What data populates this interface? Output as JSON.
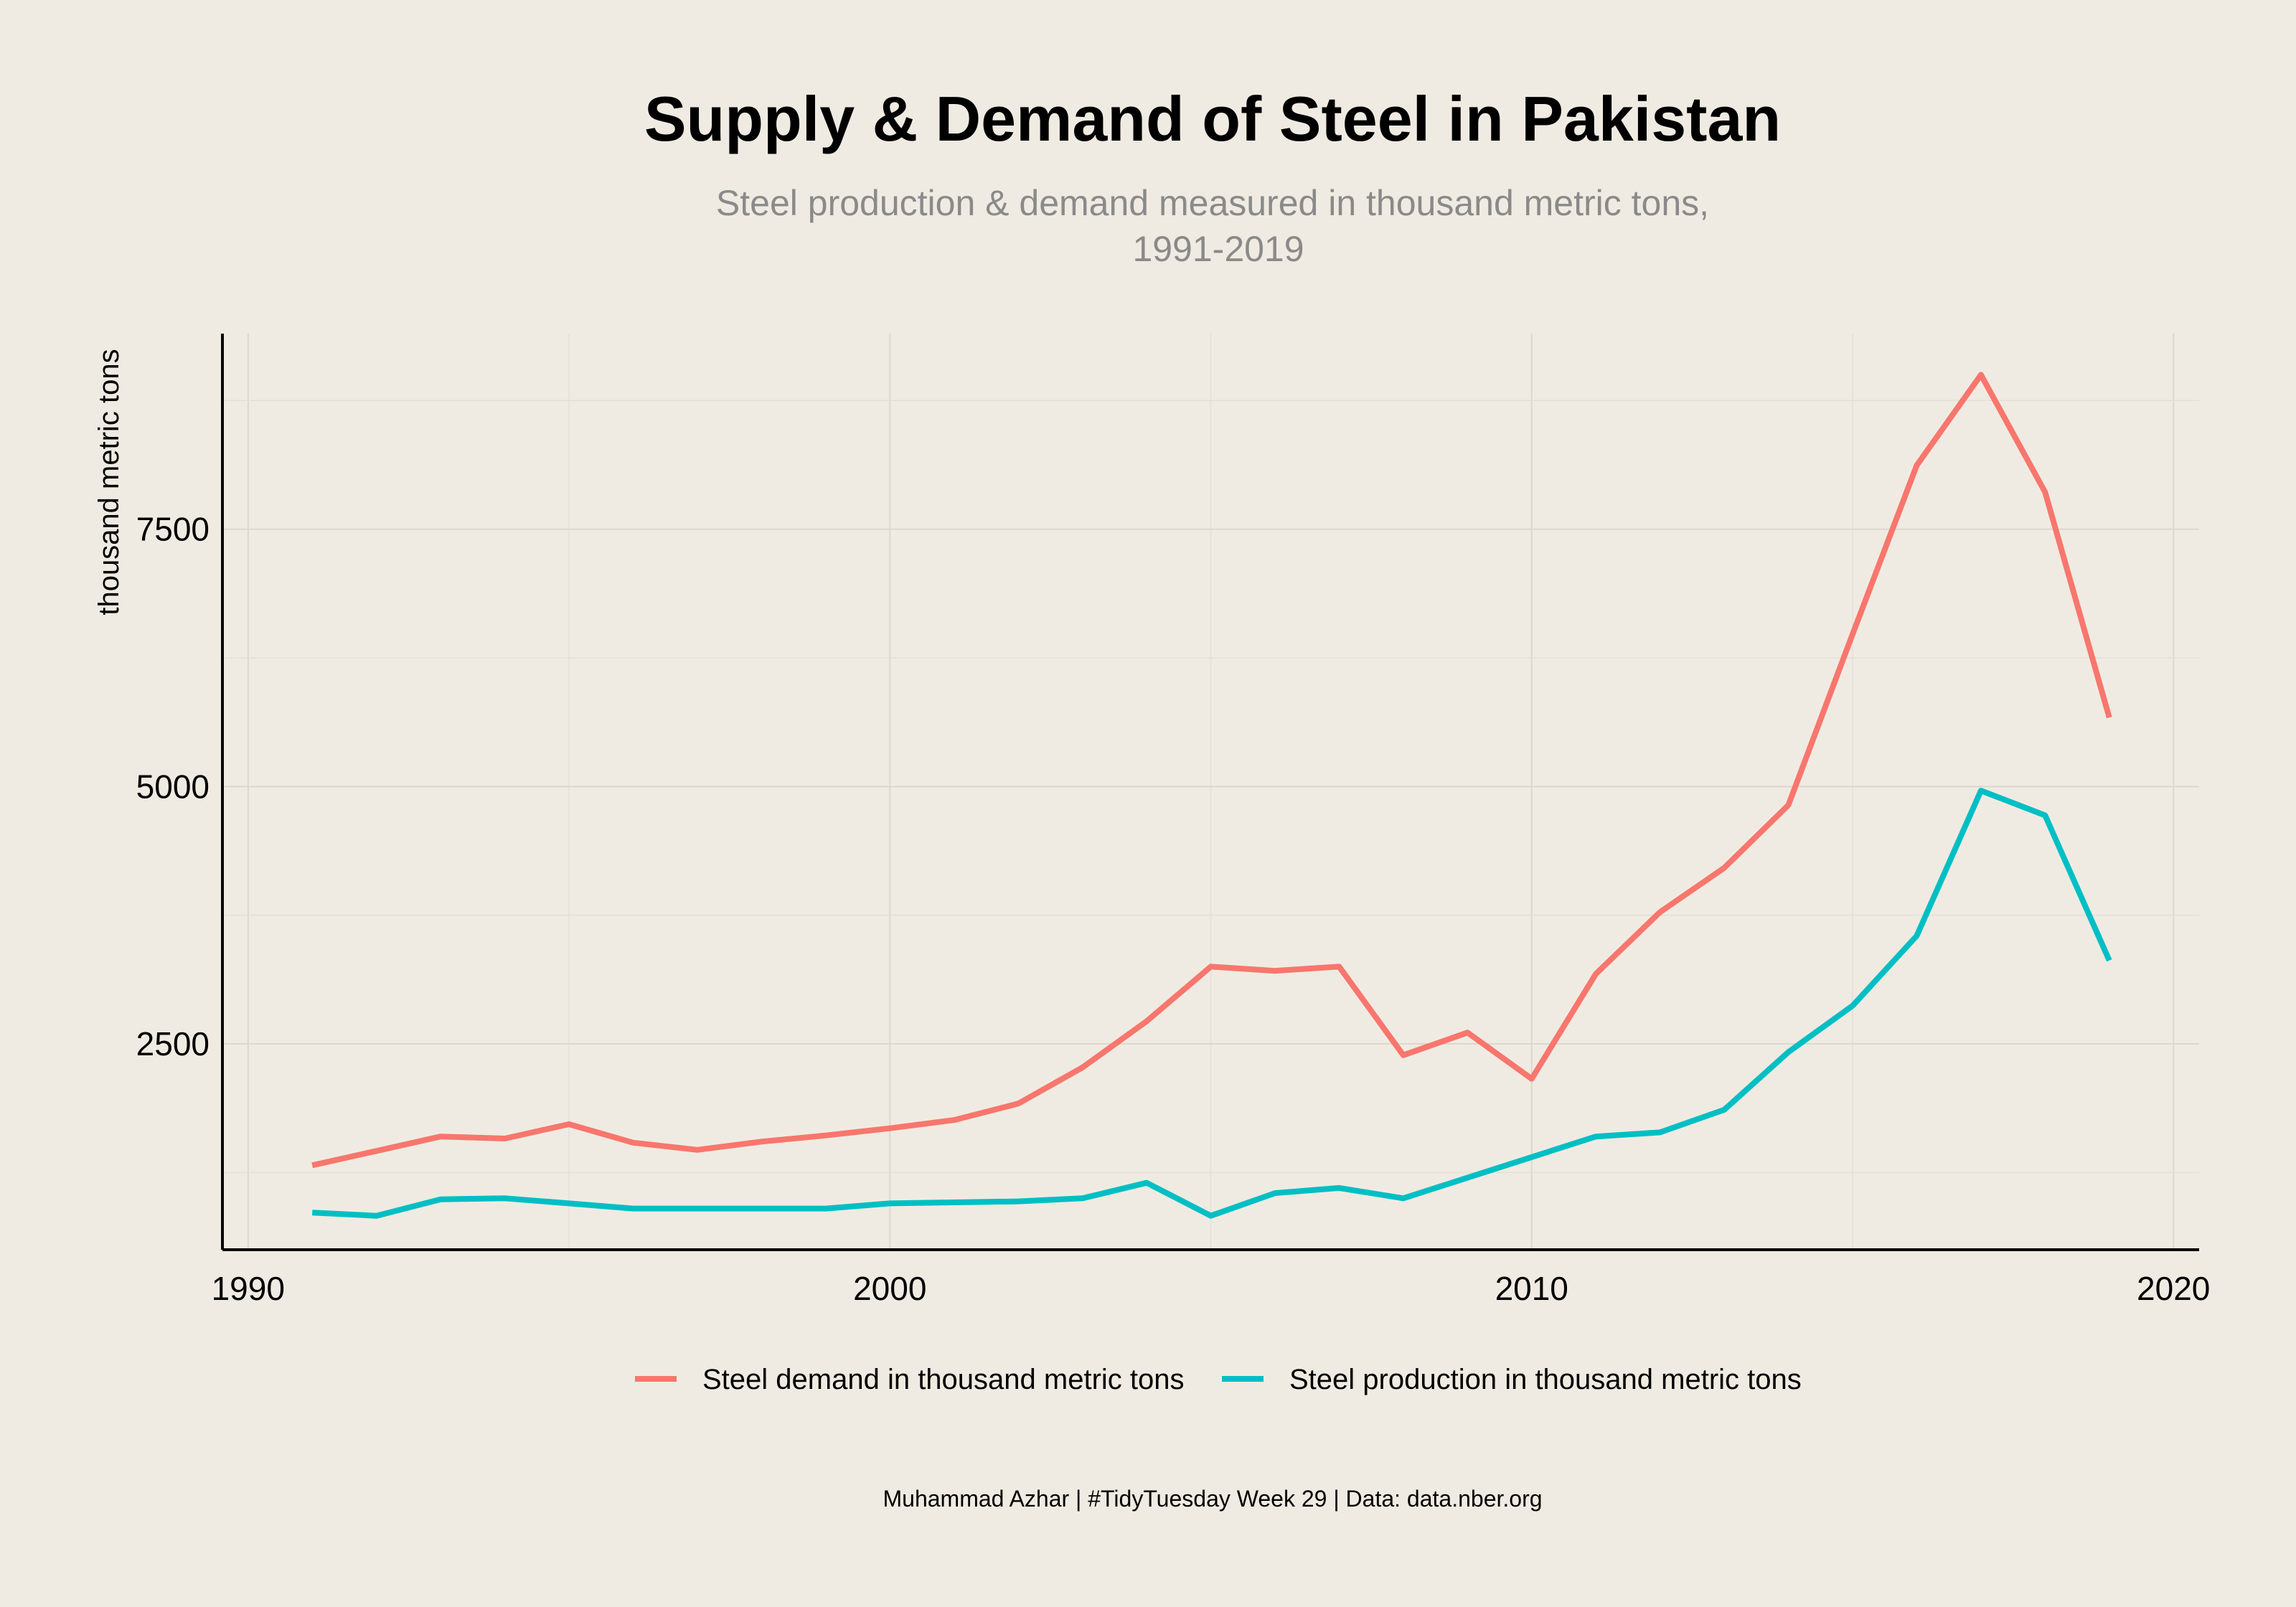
{
  "title": "Supply & Demand of Steel in Pakistan",
  "subtitle_line1": "Steel production & demand measured in thousand metric tons,",
  "subtitle_line2": "1991-2019",
  "caption": "Muhammad Azhar | #TidyTuesday Week 29 | Data: data.nber.org",
  "colors": {
    "demand": "#f8766d",
    "production": "#00bfc4",
    "background": "#f0ebe2"
  },
  "chart_data": {
    "type": "line",
    "title": "Supply & Demand of Steel in Pakistan",
    "subtitle": "Steel production & demand measured in thousand metric tons, 1991-2019",
    "xlabel": "",
    "ylabel": "thousand metric tons",
    "xlim": [
      1990,
      2020
    ],
    "ylim": [
      500,
      9400
    ],
    "x_ticks": [
      1990,
      2000,
      2010,
      2020
    ],
    "y_ticks": [
      2500,
      5000,
      7500
    ],
    "grid": true,
    "legend_position": "bottom",
    "x": [
      1991,
      1992,
      1993,
      1994,
      1995,
      1996,
      1997,
      1998,
      1999,
      2000,
      2001,
      2002,
      2003,
      2004,
      2005,
      2006,
      2007,
      2008,
      2009,
      2010,
      2011,
      2012,
      2013,
      2014,
      2015,
      2016,
      2017,
      2018,
      2019
    ],
    "series": [
      {
        "name": "Steel demand in thousand metric tons",
        "color": "#f8766d",
        "values": [
          1320,
          1460,
          1600,
          1580,
          1720,
          1540,
          1470,
          1550,
          1610,
          1680,
          1760,
          1920,
          2270,
          2720,
          3250,
          3210,
          3250,
          2390,
          2610,
          2160,
          3180,
          3780,
          4210,
          4820,
          6480,
          8120,
          9000,
          7860,
          5670
        ]
      },
      {
        "name": "Steel production in thousand metric tons",
        "color": "#00bfc4",
        "values": [
          860,
          830,
          990,
          1000,
          950,
          900,
          900,
          900,
          900,
          950,
          960,
          970,
          1000,
          1150,
          830,
          1050,
          1100,
          1000,
          1200,
          1400,
          1600,
          1640,
          1860,
          2420,
          2870,
          3550,
          4960,
          4720,
          3310
        ]
      }
    ]
  }
}
